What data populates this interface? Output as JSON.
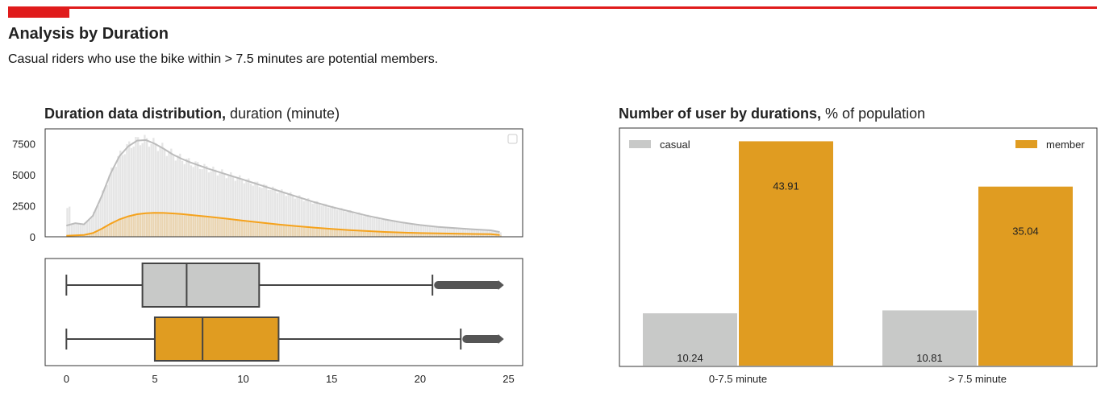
{
  "header": {
    "title": "Analysis by Duration",
    "subtitle": "Casual riders who use the bike within > 7.5 minutes are potential members."
  },
  "colors": {
    "accent": "#e01b1b",
    "casual": "#c8c9c8",
    "casual_line": "#bcbcbc",
    "member": "#e09c21",
    "member_line": "#f5a21c",
    "whisker": "#444444",
    "frame": "#333333"
  },
  "chart_data": [
    {
      "type": "area",
      "title_bold": "Duration data distribution,",
      "title_rest": " duration (minute)",
      "xlim": [
        -1.2,
        25.8
      ],
      "ylim": [
        0,
        8700
      ],
      "yticks": [
        0,
        2500,
        5000,
        7500
      ],
      "grid": false,
      "legend_placement": "top-right",
      "series": [
        {
          "x": [
            0,
            0.5,
            1,
            1.5,
            2,
            2.5,
            3,
            3.5,
            4,
            4.5,
            5,
            5.5,
            6,
            6.5,
            7,
            7.5,
            8,
            9,
            10,
            11,
            12,
            13,
            14,
            15,
            16,
            17,
            18,
            19,
            20,
            21,
            22,
            23,
            24,
            24.5
          ],
          "y": [
            900,
            1100,
            1000,
            1700,
            3300,
            5100,
            6500,
            7300,
            7750,
            7800,
            7500,
            7100,
            6650,
            6300,
            6000,
            5750,
            5500,
            5050,
            4600,
            4150,
            3700,
            3250,
            2800,
            2400,
            2050,
            1700,
            1400,
            1150,
            950,
            800,
            700,
            600,
            520,
            380
          ]
        },
        {
          "x": [
            0,
            1,
            1.5,
            2,
            2.5,
            3,
            3.5,
            4,
            4.5,
            5,
            5.5,
            6,
            6.5,
            7,
            8,
            9,
            10,
            11,
            12,
            13,
            14,
            15,
            16,
            17,
            18,
            19,
            20,
            21,
            22,
            23,
            24,
            24.5
          ],
          "y": [
            80,
            150,
            300,
            650,
            1050,
            1400,
            1650,
            1820,
            1900,
            1930,
            1920,
            1880,
            1830,
            1760,
            1620,
            1470,
            1300,
            1140,
            990,
            860,
            740,
            630,
            540,
            460,
            390,
            340,
            300,
            270,
            250,
            230,
            210,
            150
          ]
        }
      ]
    },
    {
      "type": "box",
      "xticks": [
        0,
        5,
        10,
        15,
        20,
        25
      ],
      "boxes": [
        {
          "whisker_low": 0,
          "q1": 4.3,
          "median": 6.8,
          "q3": 10.9,
          "whisker_high": 20.7,
          "outliers_to": 24.6
        },
        {
          "whisker_low": 0,
          "q1": 5.0,
          "median": 7.7,
          "q3": 12.0,
          "whisker_high": 22.3,
          "outliers_to": 24.6
        }
      ]
    },
    {
      "type": "bar",
      "title_bold": "Number of user by durations,",
      "title_rest": " % of population",
      "categories": [
        "0-7.5 minute",
        "> 7.5 minute"
      ],
      "ylim": [
        0,
        46.5
      ],
      "series": [
        {
          "name": "casual",
          "values": [
            10.24,
            10.81
          ]
        },
        {
          "name": "member",
          "values": [
            43.91,
            35.04
          ]
        }
      ],
      "value_labels": [
        "10.24",
        "10.81",
        "43.91",
        "35.04"
      ],
      "legend_placement": "top"
    }
  ]
}
